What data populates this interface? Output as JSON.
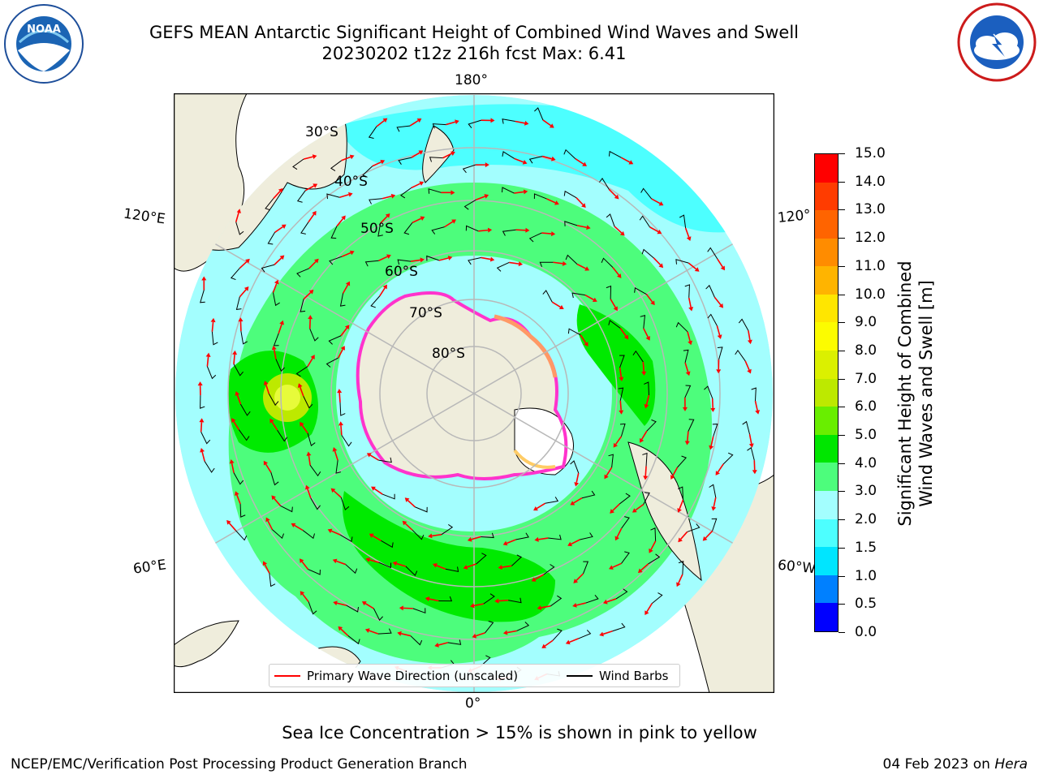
{
  "header": {
    "title_line1": "GEFS MEAN Antarctic Significant Height of Combined Wind Waves and Swell",
    "title_line2": "20230202 t12z 216h fcst   Max: 6.41"
  },
  "logos": {
    "left": {
      "name": "NOAA",
      "text": "NOAA",
      "ring_text": "NATIONAL OCEANIC AND ATMOSPHERIC ADMINISTRATION · U.S. DEPARTMENT OF COMMERCE"
    },
    "right": {
      "name": "National Weather Service",
      "ring_text": "NATIONAL WEATHER SERVICE"
    }
  },
  "map": {
    "projection": "south polar stereographic",
    "longitude_labels": {
      "top": "180°",
      "bottom": "0°",
      "left_upper": "120°E",
      "left_lower": "60°E",
      "right_upper": "120°",
      "right_lower": "60°W"
    },
    "latitude_labels": [
      "30°S",
      "40°S",
      "50°S",
      "60°S",
      "70°S",
      "80°S"
    ],
    "colors": {
      "land": "#efeddc",
      "ocean_light": "#a3fefe",
      "ocean_cyan": "#4dffff",
      "band_green_light": "#4dfd7c",
      "band_green": "#00ea00",
      "max_yellow": "#e7fb3a",
      "ice_pink": "#ff33cc",
      "arrow": "#ff0000",
      "barb": "#000000",
      "grid": "#b8b8b8"
    }
  },
  "legend": {
    "items": [
      {
        "label": "Primary Wave Direction (unscaled)",
        "color": "#ff0000"
      },
      {
        "label": "Wind Barbs",
        "color": "#000000"
      }
    ]
  },
  "colorbar": {
    "label_line1": "Significant Height of Combined",
    "label_line2": "Wind Waves and Swell [m]",
    "ticks": [
      "15.0",
      "14.0",
      "13.0",
      "12.0",
      "11.0",
      "10.0",
      "9.0",
      "8.0",
      "7.0",
      "6.0",
      "5.0",
      "4.0",
      "3.0",
      "2.0",
      "1.5",
      "1.0",
      "0.5",
      "0.0"
    ],
    "colors": [
      "#0000ff",
      "#0080ff",
      "#00e5ff",
      "#4dffff",
      "#a3fefe",
      "#4dfd7c",
      "#00e600",
      "#69ee00",
      "#bde900",
      "#dbf000",
      "#fcfc00",
      "#ffe600",
      "#ffb400",
      "#ff8c00",
      "#ff6400",
      "#ff3c00",
      "#ff0000"
    ]
  },
  "caption": "Sea Ice Concentration > 15% is shown in pink to yellow",
  "footer": {
    "left": "NCEP/EMC/Verification Post Processing Product Generation Branch",
    "right_date": "04 Feb 2023 on ",
    "right_machine": "Hera"
  }
}
